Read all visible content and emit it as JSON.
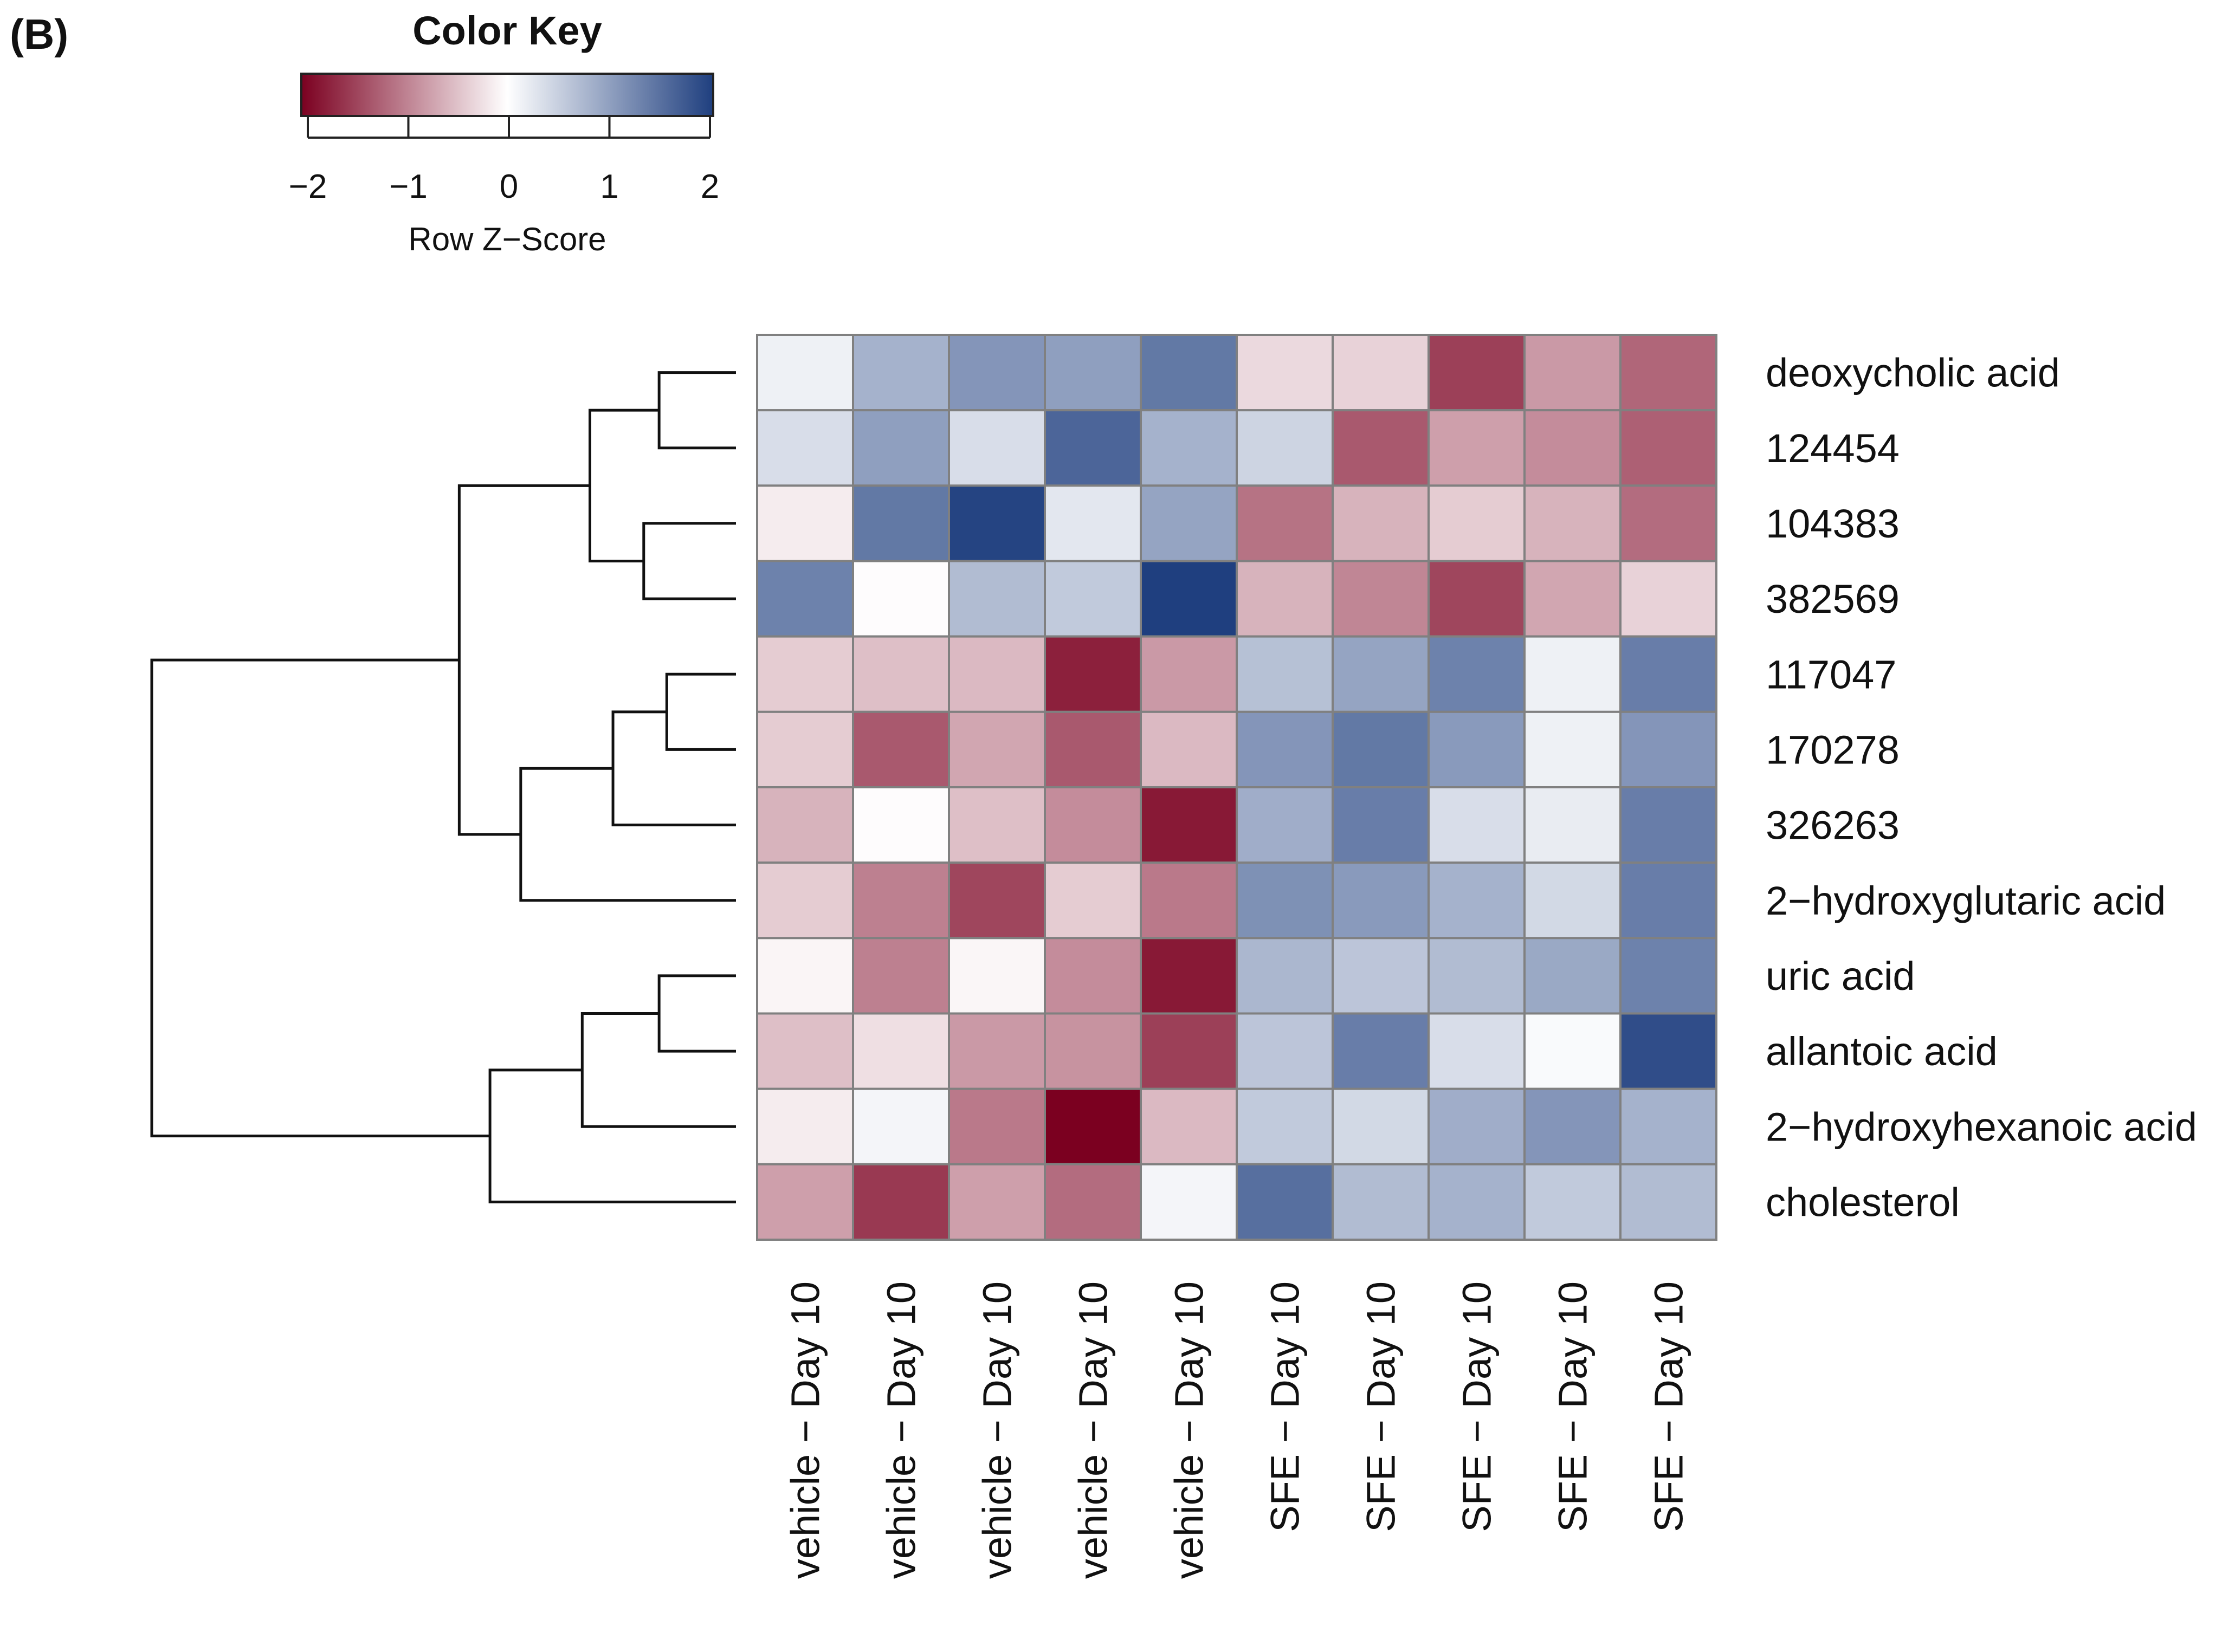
{
  "panel_label": "(B)",
  "chart_data": {
    "type": "heatmap",
    "color_key": {
      "title": "Color Key",
      "label": "Row Z−Score",
      "range": [
        -2,
        2
      ],
      "ticks": [
        -2,
        -1,
        0,
        1,
        2
      ],
      "tick_labels": [
        "−2",
        "−1",
        "0",
        "1",
        "2"
      ],
      "low_color": "#7b0020",
      "mid_color": "#ffffff",
      "high_color": "#1f3f7f"
    },
    "rows": [
      "deoxycholic acid",
      "124454",
      "104383",
      "382569",
      "117047",
      "170278",
      "326263",
      "2−hydroxyglutaric acid",
      "uric acid",
      "allantoic acid",
      "2−hydroxyhexanoic acid",
      "cholesterol"
    ],
    "columns": [
      "vehicle − Day 10",
      "vehicle − Day 10",
      "vehicle − Day 10",
      "vehicle − Day 10",
      "vehicle − Day 10",
      "SFE − Day 10",
      "SFE − Day 10",
      "SFE − Day 10",
      "SFE − Day 10",
      "SFE − Day 10"
    ],
    "values": [
      [
        0.15,
        0.8,
        1.1,
        1.0,
        1.4,
        -0.3,
        -0.35,
        -1.5,
        -0.8,
        -1.2
      ],
      [
        0.35,
        1.0,
        0.35,
        1.6,
        0.8,
        0.45,
        -1.3,
        -0.75,
        -0.9,
        -1.25
      ],
      [
        -0.15,
        1.4,
        1.95,
        0.25,
        0.95,
        -1.1,
        -0.6,
        -0.4,
        -0.6,
        -1.15
      ],
      [
        1.3,
        -0.02,
        0.7,
        0.55,
        2.0,
        -0.6,
        -0.95,
        -1.45,
        -0.7,
        -0.35
      ],
      [
        -0.4,
        -0.5,
        -0.55,
        -1.75,
        -0.8,
        0.65,
        0.95,
        1.3,
        0.15,
        1.35
      ],
      [
        -0.4,
        -1.3,
        -0.7,
        -1.3,
        -0.55,
        1.1,
        1.4,
        1.05,
        0.15,
        1.1
      ],
      [
        -0.6,
        -0.02,
        -0.5,
        -0.9,
        -1.8,
        0.85,
        1.35,
        0.35,
        0.2,
        1.35
      ],
      [
        -0.4,
        -1.0,
        -1.45,
        -0.4,
        -1.05,
        1.15,
        1.05,
        0.8,
        0.4,
        1.35
      ],
      [
        -0.08,
        -1.0,
        -0.07,
        -0.9,
        -1.8,
        0.75,
        0.6,
        0.7,
        0.9,
        1.3
      ],
      [
        -0.5,
        -0.25,
        -0.8,
        -0.85,
        -1.5,
        0.6,
        1.35,
        0.35,
        0.05,
        1.85
      ],
      [
        -0.15,
        0.1,
        -1.05,
        -2.0,
        -0.55,
        0.55,
        0.4,
        0.85,
        1.1,
        0.8
      ],
      [
        -0.75,
        -1.55,
        -0.75,
        -1.15,
        0.1,
        1.5,
        0.7,
        0.8,
        0.55,
        0.7
      ]
    ],
    "row_dendrogram": {
      "merges": [
        [
          0,
          1,
          0.5
        ],
        [
          2,
          3,
          0.6
        ],
        [
          4,
          5,
          0.45
        ],
        [
          8,
          9,
          0.5
        ],
        [
          "m0",
          "m1",
          0.95
        ],
        [
          "m2",
          6,
          0.8
        ],
        [
          "m5",
          7,
          1.4
        ],
        [
          "m3",
          10,
          1.0
        ],
        [
          "m4",
          "m6",
          1.8
        ],
        [
          "m7",
          11,
          1.6
        ],
        [
          "m8",
          "m9",
          3.8
        ]
      ]
    }
  }
}
